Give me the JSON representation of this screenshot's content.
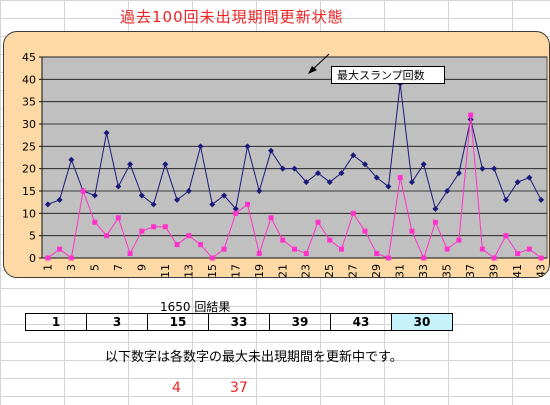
{
  "title": "過去100回未出現期間更新状態",
  "callout": "最大スランプ回数",
  "draw_label": "1650 回結果",
  "results": [
    "1",
    "3",
    "15",
    "33",
    "39",
    "43",
    "30"
  ],
  "note": "以下数字は各数字の最大未出現期間を更新中です。",
  "updated_numbers": [
    "4",
    "37"
  ],
  "colors": {
    "current": "#1a1a7a",
    "max": "#ff33cc",
    "plot_bg": "#c0c0c0",
    "panel_bg": "#fdd9a6",
    "accent_red": "#ee2222"
  },
  "chart_data": {
    "type": "line",
    "x": [
      1,
      2,
      3,
      4,
      5,
      6,
      7,
      8,
      9,
      10,
      11,
      12,
      13,
      14,
      15,
      16,
      17,
      18,
      19,
      20,
      21,
      22,
      23,
      24,
      25,
      26,
      27,
      28,
      29,
      30,
      31,
      32,
      33,
      34,
      35,
      36,
      37,
      38,
      39,
      40,
      41,
      42,
      43
    ],
    "x_tick_labels": [
      "1",
      "3",
      "5",
      "7",
      "9",
      "11",
      "13",
      "15",
      "17",
      "19",
      "21",
      "23",
      "25",
      "27",
      "29",
      "31",
      "33",
      "35",
      "37",
      "39",
      "41",
      "43"
    ],
    "ylim": [
      0,
      45
    ],
    "y_ticks": [
      "0",
      "5",
      "10",
      "15",
      "20",
      "25",
      "30",
      "35",
      "40",
      "45"
    ],
    "grid": true,
    "legend": "none",
    "series": [
      {
        "values": [
          12,
          13,
          22,
          15,
          14,
          28,
          16,
          21,
          14,
          12,
          21,
          13,
          15,
          25,
          12,
          14,
          11,
          25,
          15,
          24,
          20,
          20,
          17,
          19,
          17,
          19,
          23,
          21,
          18,
          16,
          39,
          17,
          21,
          11,
          15,
          19,
          31,
          20,
          20,
          13,
          17,
          18,
          13
        ]
      },
      {
        "values": [
          0,
          2,
          0,
          15,
          8,
          5,
          9,
          1,
          6,
          7,
          7,
          3,
          5,
          3,
          0,
          2,
          10,
          12,
          1,
          9,
          4,
          2,
          1,
          8,
          4,
          2,
          10,
          6,
          1,
          0,
          18,
          6,
          0,
          8,
          2,
          4,
          32,
          2,
          0,
          5,
          1,
          2,
          0
        ]
      }
    ]
  }
}
